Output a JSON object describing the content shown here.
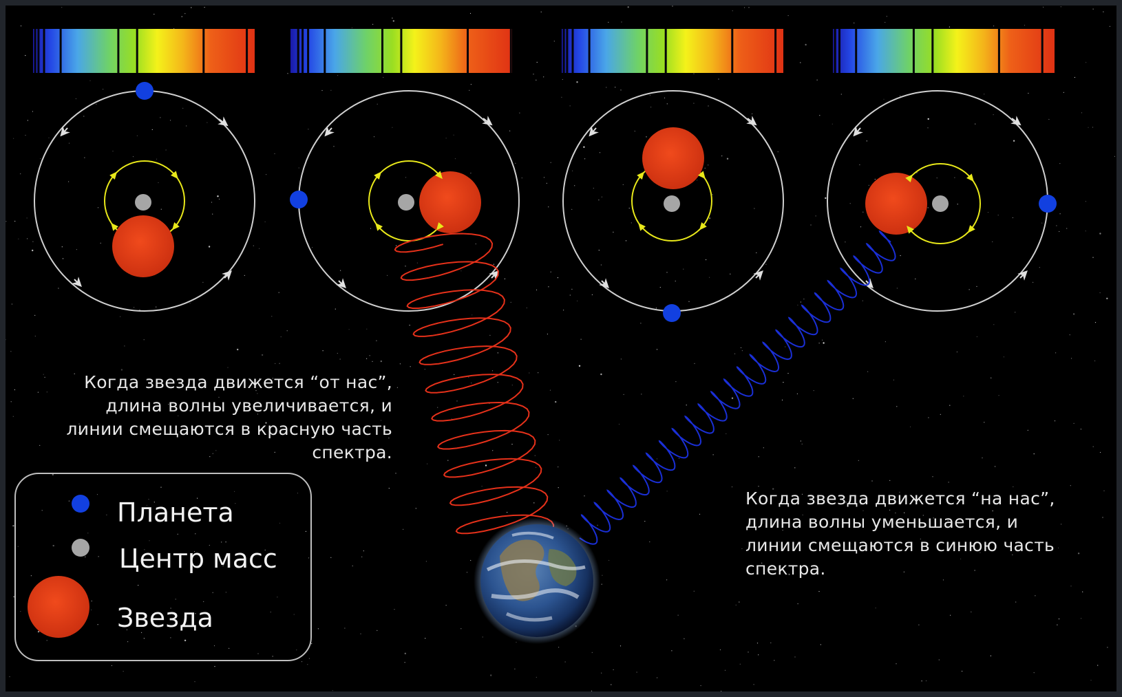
{
  "captions": {
    "away": [
      "Когда звезда движется “от нас”,",
      "длина волны увеличивается, и",
      "линии смещаются в красную часть",
      "спектра."
    ],
    "toward": [
      "Когда звезда движется “на нас”,",
      "длина волны уменьшается, и",
      "линии смещаются в синюю часть",
      "спектра."
    ]
  },
  "legend": {
    "planet": "Планета",
    "center": "Центр масс",
    "star": "Звезда"
  },
  "colors": {
    "background": "#000000",
    "planet": "#1240e0",
    "center_of_mass": "#a6a6a6",
    "star": "#e03a10",
    "star_orbit": "#e8e81a",
    "planet_orbit": "#d0d0d0",
    "redshift_wave": "#e6311a",
    "blueshift_wave": "#1a2fd6",
    "legend_border": "#bfbfbf"
  },
  "panels": [
    {
      "star_position": "bottom",
      "planet_position": "top",
      "spectrum_shift": "neutral"
    },
    {
      "star_position": "right",
      "planet_position": "left",
      "spectrum_shift": "red"
    },
    {
      "star_position": "top",
      "planet_position": "bottom",
      "spectrum_shift": "neutral"
    },
    {
      "star_position": "left",
      "planet_position": "right",
      "spectrum_shift": "blue"
    }
  ],
  "icons": {
    "earth": "earth-icon",
    "planet": "planet-icon",
    "center_of_mass": "center-of-mass-icon",
    "star": "star-icon"
  }
}
